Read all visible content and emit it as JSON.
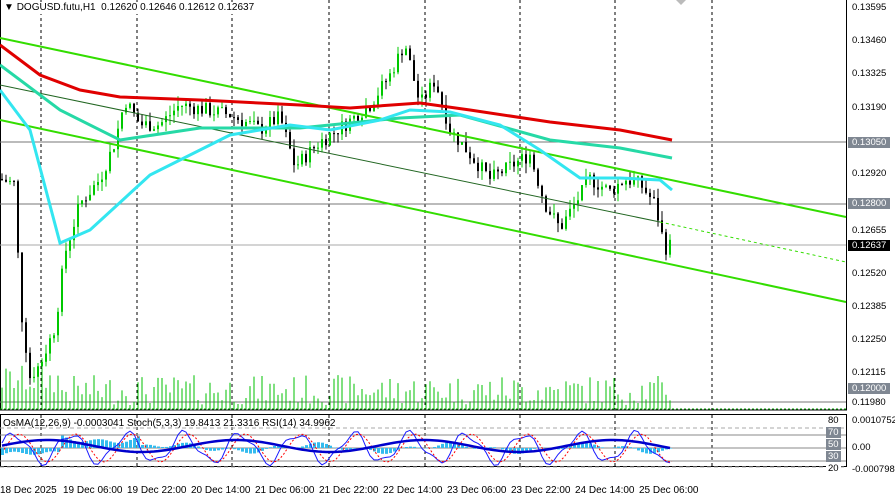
{
  "header": {
    "symbol": "DOGUSD.futu,H1",
    "open": "0.12620",
    "high": "0.12646",
    "low": "0.12612",
    "close": "0.12637"
  },
  "indicator_header": "OsMA(12,26,9) -0.0003041  Stoch(5,3,3) 19.8413 21.3316  RSI(14) 34.9962",
  "price_axis": [
    "0.13595",
    "0.13460",
    "0.13325",
    "0.13190",
    "0.12920",
    "0.12655",
    "0.12520",
    "0.12385",
    "0.12250",
    "0.12115",
    "0.11980"
  ],
  "price_tags": {
    "level_high": "0.13050",
    "level_mid": "0.12800",
    "current": "0.12637",
    "level_low": "0.12000"
  },
  "sub_axis": {
    "max": "0.0010752",
    "zero": "0.00",
    "min": "-0.000798",
    "l80": "80",
    "l70": "70",
    "l50": "50",
    "l30": "30",
    "l20": "20"
  },
  "time_axis": [
    "18 Dec 2025",
    "19 Dec 06:00",
    "19 Dec 22:00",
    "20 Dec 14:00",
    "21 Dec 06:00",
    "21 Dec 22:00",
    "22 Dec 14:00",
    "23 Dec 06:00",
    "23 Dec 22:00",
    "24 Dec 14:00",
    "25 Dec 06:00"
  ],
  "colors": {
    "bull": "#00c800",
    "bear": "#000000",
    "ma_fast": "#33e6f0",
    "ma_mid": "#26d9a6",
    "ma_slow": "#e00000",
    "channel": "#33dd00",
    "stoch": "#1a1aff",
    "signal": "#ff0000",
    "osma": "#33bbee",
    "rsi": "#0000cc"
  },
  "price_path": [
    [
      0,
      0.129
    ],
    [
      15,
      0.1288
    ],
    [
      20,
      0.124
    ],
    [
      30,
      0.121
    ],
    [
      40,
      0.1215
    ],
    [
      55,
      0.123
    ],
    [
      65,
      0.126
    ],
    [
      80,
      0.128
    ],
    [
      100,
      0.129
    ],
    [
      115,
      0.1305
    ],
    [
      125,
      0.1322
    ],
    [
      140,
      0.1312
    ],
    [
      160,
      0.1312
    ],
    [
      180,
      0.132
    ],
    [
      230,
      0.1316
    ],
    [
      260,
      0.131
    ],
    [
      280,
      0.1315
    ],
    [
      295,
      0.1295
    ],
    [
      320,
      0.1305
    ],
    [
      345,
      0.1312
    ],
    [
      370,
      0.132
    ],
    [
      390,
      0.1332
    ],
    [
      405,
      0.1345
    ],
    [
      420,
      0.132
    ],
    [
      435,
      0.133
    ],
    [
      450,
      0.131
    ],
    [
      470,
      0.13
    ],
    [
      490,
      0.129
    ],
    [
      510,
      0.1295
    ],
    [
      530,
      0.13
    ],
    [
      545,
      0.128
    ],
    [
      560,
      0.127
    ],
    [
      575,
      0.128
    ],
    [
      590,
      0.129
    ],
    [
      610,
      0.1285
    ],
    [
      625,
      0.129
    ],
    [
      640,
      0.1288
    ],
    [
      655,
      0.128
    ],
    [
      665,
      0.1262
    ],
    [
      672,
      0.12637
    ]
  ]
}
